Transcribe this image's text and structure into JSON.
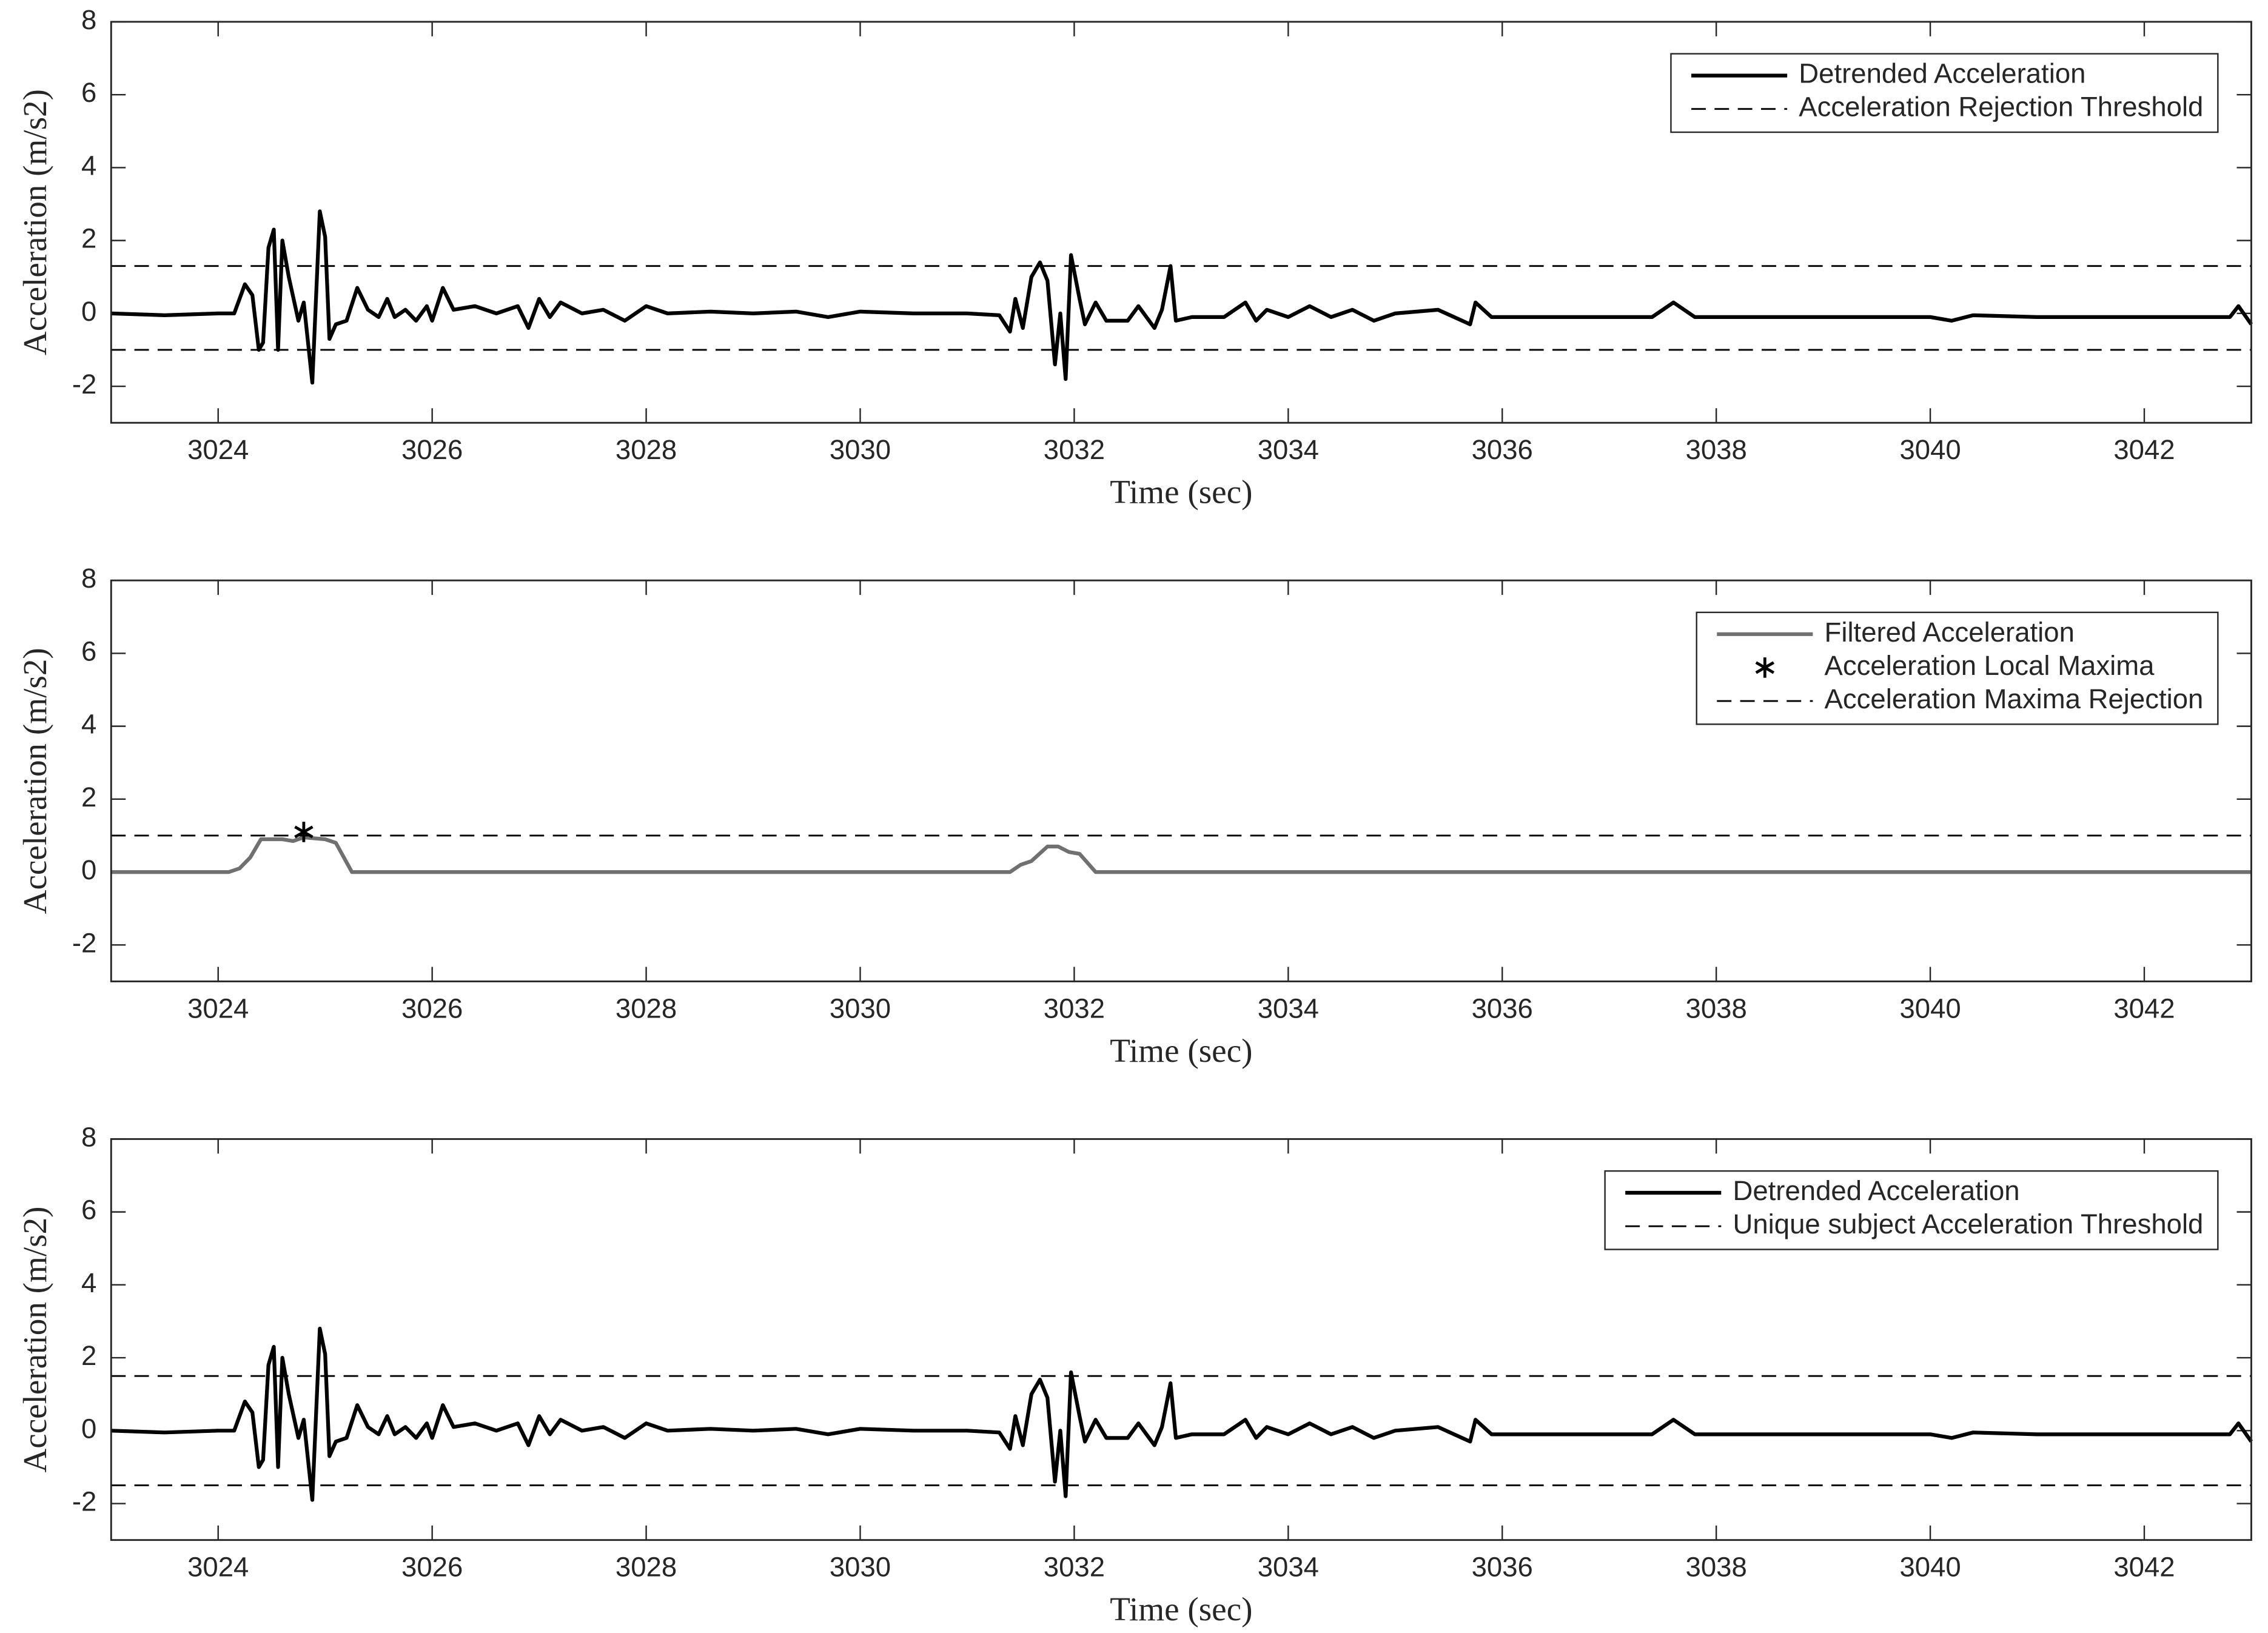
{
  "chart_data": [
    {
      "type": "line",
      "xlabel": "Time (sec)",
      "ylabel": "Acceleration (m/s2)",
      "xlim": [
        3023,
        3043
      ],
      "ylim": [
        -3,
        8
      ],
      "xticks": [
        3024,
        3026,
        3028,
        3030,
        3032,
        3034,
        3036,
        3038,
        3040,
        3042
      ],
      "yticks": [
        -2,
        0,
        2,
        4,
        6,
        8
      ],
      "legend": "upper right",
      "series": [
        {
          "name": "Detrended Acceleration",
          "color": "#000000",
          "style": "solid",
          "x": [
            3023.0,
            3023.5,
            3024.0,
            3024.15,
            3024.25,
            3024.32,
            3024.38,
            3024.42,
            3024.47,
            3024.52,
            3024.56,
            3024.6,
            3024.66,
            3024.75,
            3024.8,
            3024.88,
            3024.95,
            3025.0,
            3025.04,
            3025.1,
            3025.2,
            3025.3,
            3025.4,
            3025.5,
            3025.58,
            3025.65,
            3025.75,
            3025.85,
            3025.95,
            3026.0,
            3026.1,
            3026.2,
            3026.4,
            3026.6,
            3026.8,
            3026.9,
            3027.0,
            3027.1,
            3027.2,
            3027.4,
            3027.6,
            3027.8,
            3028.0,
            3028.2,
            3028.6,
            3029.0,
            3029.4,
            3029.7,
            3030.0,
            3030.5,
            3031.0,
            3031.3,
            3031.4,
            3031.45,
            3031.52,
            3031.6,
            3031.68,
            3031.75,
            3031.82,
            3031.87,
            3031.92,
            3031.97,
            3032.05,
            3032.1,
            3032.2,
            3032.3,
            3032.5,
            3032.6,
            3032.75,
            3032.82,
            3032.9,
            3032.95,
            3033.1,
            3033.4,
            3033.6,
            3033.7,
            3033.8,
            3034.0,
            3034.2,
            3034.4,
            3034.6,
            3034.8,
            3035.0,
            3035.4,
            3035.7,
            3035.75,
            3035.9,
            3036.5,
            3037.4,
            3037.6,
            3037.8,
            3038.5,
            3039.5,
            3040.0,
            3040.2,
            3040.4,
            3041.0,
            3042.0,
            3042.8,
            3042.88,
            3043.0
          ],
          "values": [
            0.0,
            -0.05,
            0.0,
            0.0,
            0.8,
            0.5,
            -1.0,
            -0.8,
            1.8,
            2.3,
            -1.0,
            2.0,
            1.0,
            -0.2,
            0.3,
            -1.9,
            2.8,
            2.1,
            -0.7,
            -0.3,
            -0.2,
            0.7,
            0.1,
            -0.1,
            0.4,
            -0.1,
            0.1,
            -0.2,
            0.2,
            -0.2,
            0.7,
            0.1,
            0.2,
            0.0,
            0.2,
            -0.4,
            0.4,
            -0.1,
            0.3,
            0.0,
            0.1,
            -0.2,
            0.2,
            0.0,
            0.05,
            0.0,
            0.05,
            -0.1,
            0.05,
            0.0,
            0.0,
            -0.05,
            -0.5,
            0.4,
            -0.4,
            1.0,
            1.4,
            0.9,
            -1.4,
            0.0,
            -1.8,
            1.6,
            0.4,
            -0.3,
            0.3,
            -0.2,
            -0.2,
            0.2,
            -0.4,
            0.1,
            1.3,
            -0.2,
            -0.1,
            -0.1,
            0.3,
            -0.2,
            0.1,
            -0.1,
            0.2,
            -0.1,
            0.1,
            -0.2,
            0.0,
            0.1,
            -0.3,
            0.3,
            -0.1,
            -0.1,
            -0.1,
            0.3,
            -0.1,
            -0.1,
            -0.1,
            -0.1,
            -0.2,
            -0.05,
            -0.1,
            -0.1,
            -0.1,
            0.2,
            -0.3
          ]
        },
        {
          "name": "Acceleration Rejection Threshold",
          "color": "#000000",
          "style": "dashed",
          "x": [
            3023,
            3043
          ],
          "values": [
            1.3,
            1.3
          ]
        },
        {
          "name": null,
          "color": "#000000",
          "style": "dashed",
          "x": [
            3023,
            3043
          ],
          "values": [
            -1.0,
            -1.0
          ]
        }
      ]
    },
    {
      "type": "line",
      "xlabel": "Time (sec)",
      "ylabel": "Acceleration (m/s2)",
      "xlim": [
        3023,
        3043
      ],
      "ylim": [
        -3,
        8
      ],
      "xticks": [
        3024,
        3026,
        3028,
        3030,
        3032,
        3034,
        3036,
        3038,
        3040,
        3042
      ],
      "yticks": [
        -2,
        0,
        2,
        4,
        6,
        8
      ],
      "legend": "upper right",
      "series": [
        {
          "name": "Filtered Acceleration",
          "color": "#707070",
          "style": "solid",
          "x": [
            3023.0,
            3024.1,
            3024.2,
            3024.3,
            3024.4,
            3024.6,
            3024.7,
            3024.8,
            3025.0,
            3025.1,
            3025.25,
            3031.4,
            3031.5,
            3031.6,
            3031.75,
            3031.85,
            3031.95,
            3032.05,
            3032.2,
            3043.0
          ],
          "values": [
            0,
            0,
            0.1,
            0.4,
            0.9,
            0.9,
            0.85,
            0.95,
            0.9,
            0.8,
            0,
            0,
            0.2,
            0.3,
            0.7,
            0.7,
            0.55,
            0.5,
            0,
            0
          ]
        },
        {
          "name": "Acceleration Local Maxima",
          "color": "#000000",
          "style": "asterisk",
          "x": [
            3024.8
          ],
          "values": [
            1.1
          ]
        },
        {
          "name": "Acceleration Maxima Rejection",
          "color": "#000000",
          "style": "dashed",
          "x": [
            3023,
            3043
          ],
          "values": [
            1.0,
            1.0
          ]
        }
      ]
    },
    {
      "type": "line",
      "xlabel": "Time (sec)",
      "ylabel": "Acceleration (m/s2)",
      "xlim": [
        3023,
        3043
      ],
      "ylim": [
        -3,
        8
      ],
      "xticks": [
        3024,
        3026,
        3028,
        3030,
        3032,
        3034,
        3036,
        3038,
        3040,
        3042
      ],
      "yticks": [
        -2,
        0,
        2,
        4,
        6,
        8
      ],
      "legend": "upper right",
      "series": [
        {
          "name": "Detrended Acceleration",
          "color": "#000000",
          "style": "solid",
          "x": [
            3023.0,
            3023.5,
            3024.0,
            3024.15,
            3024.25,
            3024.32,
            3024.38,
            3024.42,
            3024.47,
            3024.52,
            3024.56,
            3024.6,
            3024.66,
            3024.75,
            3024.8,
            3024.88,
            3024.95,
            3025.0,
            3025.04,
            3025.1,
            3025.2,
            3025.3,
            3025.4,
            3025.5,
            3025.58,
            3025.65,
            3025.75,
            3025.85,
            3025.95,
            3026.0,
            3026.1,
            3026.2,
            3026.4,
            3026.6,
            3026.8,
            3026.9,
            3027.0,
            3027.1,
            3027.2,
            3027.4,
            3027.6,
            3027.8,
            3028.0,
            3028.2,
            3028.6,
            3029.0,
            3029.4,
            3029.7,
            3030.0,
            3030.5,
            3031.0,
            3031.3,
            3031.4,
            3031.45,
            3031.52,
            3031.6,
            3031.68,
            3031.75,
            3031.82,
            3031.87,
            3031.92,
            3031.97,
            3032.05,
            3032.1,
            3032.2,
            3032.3,
            3032.5,
            3032.6,
            3032.75,
            3032.82,
            3032.9,
            3032.95,
            3033.1,
            3033.4,
            3033.6,
            3033.7,
            3033.8,
            3034.0,
            3034.2,
            3034.4,
            3034.6,
            3034.8,
            3035.0,
            3035.4,
            3035.7,
            3035.75,
            3035.9,
            3036.5,
            3037.4,
            3037.6,
            3037.8,
            3038.5,
            3039.5,
            3040.0,
            3040.2,
            3040.4,
            3041.0,
            3042.0,
            3042.8,
            3042.88,
            3043.0
          ],
          "values": [
            0.0,
            -0.05,
            0.0,
            0.0,
            0.8,
            0.5,
            -1.0,
            -0.8,
            1.8,
            2.3,
            -1.0,
            2.0,
            1.0,
            -0.2,
            0.3,
            -1.9,
            2.8,
            2.1,
            -0.7,
            -0.3,
            -0.2,
            0.7,
            0.1,
            -0.1,
            0.4,
            -0.1,
            0.1,
            -0.2,
            0.2,
            -0.2,
            0.7,
            0.1,
            0.2,
            0.0,
            0.2,
            -0.4,
            0.4,
            -0.1,
            0.3,
            0.0,
            0.1,
            -0.2,
            0.2,
            0.0,
            0.05,
            0.0,
            0.05,
            -0.1,
            0.05,
            0.0,
            0.0,
            -0.05,
            -0.5,
            0.4,
            -0.4,
            1.0,
            1.4,
            0.9,
            -1.4,
            0.0,
            -1.8,
            1.6,
            0.4,
            -0.3,
            0.3,
            -0.2,
            -0.2,
            0.2,
            -0.4,
            0.1,
            1.3,
            -0.2,
            -0.1,
            -0.1,
            0.3,
            -0.2,
            0.1,
            -0.1,
            0.2,
            -0.1,
            0.1,
            -0.2,
            0.0,
            0.1,
            -0.3,
            0.3,
            -0.1,
            -0.1,
            -0.1,
            0.3,
            -0.1,
            -0.1,
            -0.1,
            -0.1,
            -0.2,
            -0.05,
            -0.1,
            -0.1,
            -0.1,
            0.2,
            -0.3
          ]
        },
        {
          "name": "Unique subject Acceleration Threshold",
          "color": "#000000",
          "style": "dashed",
          "x": [
            3023,
            3043
          ],
          "values": [
            1.5,
            1.5
          ]
        },
        {
          "name": null,
          "color": "#000000",
          "style": "dashed",
          "x": [
            3023,
            3043
          ],
          "values": [
            -1.5,
            -1.5
          ]
        }
      ]
    }
  ]
}
